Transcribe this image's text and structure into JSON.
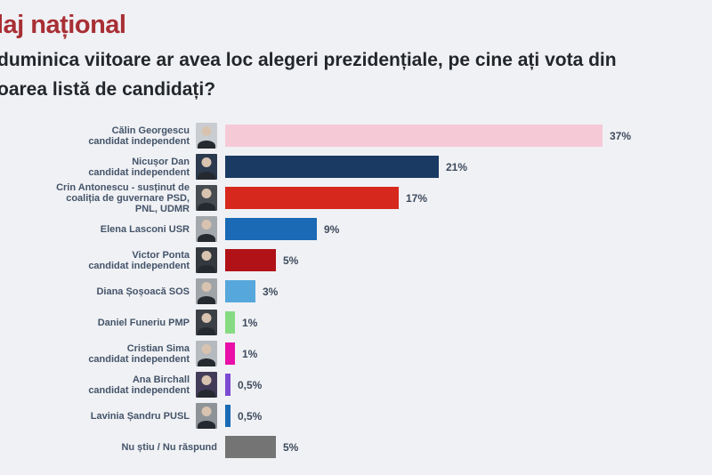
{
  "header": {
    "title": "laj național",
    "question_line1": "duminica viitoare ar avea loc alegeri prezidențiale, pe cine ați vota din",
    "question_line2": "oarea listă de candidați?"
  },
  "colors": {
    "background": "#F0F1F4",
    "title": "#A82F35",
    "question_text": "#23272B",
    "category_label": "#44546A",
    "value_label": "#3E4B5E"
  },
  "chart_data": {
    "type": "bar",
    "orientation": "horizontal",
    "title": "laj național",
    "question": "duminica viitoare ar avea loc alegeri prezidențiale, pe cine ați vota din oarea listă de candidați?",
    "unit": "%",
    "xlim": [
      0,
      40
    ],
    "grid": false,
    "legend": "none",
    "categories": [
      "Călin Georgescu — candidat independent",
      "Nicușor Dan — candidat independent",
      "Crin Antonescu - susținut de coaliția de guvernare PSD, PNL, UDMR",
      "Elena Lasconi USR",
      "Victor Ponta — candidat independent",
      "Diana Șoșoacă SOS",
      "Daniel Funeriu PMP",
      "Cristian Sima — candidat independent",
      "Ana Birchall — candidat independent",
      "Lavinia Șandru PUSL",
      "Nu știu / Nu răspund"
    ],
    "values": [
      37,
      21,
      17,
      9,
      5,
      3,
      1,
      1,
      0.5,
      0.5,
      5
    ],
    "value_labels": [
      "37%",
      "21%",
      "17%",
      "9%",
      "5%",
      "3%",
      "1%",
      "1%",
      "0,5%",
      "0,5%",
      "5%"
    ],
    "bar_colors": [
      "#F6C9D6",
      "#1A3A63",
      "#D7281D",
      "#1A6AB5",
      "#B01217",
      "#56A7DC",
      "#86DB82",
      "#E90FA8",
      "#7B4AD2",
      "#1A6AB5",
      "#747474"
    ],
    "rows": [
      {
        "label_lines": [
          "Călin Georgescu",
          "candidat independent"
        ],
        "photo_bg": "#C9CDD1"
      },
      {
        "label_lines": [
          "Nicușor Dan",
          "candidat independent"
        ],
        "photo_bg": "#2B3A4E"
      },
      {
        "label_lines": [
          "Crin Antonescu - susținut de",
          "coaliția de guvernare PSD,",
          "PNL, UDMR"
        ],
        "photo_bg": "#474C52"
      },
      {
        "label_lines": [
          "Elena Lasconi USR"
        ],
        "photo_bg": "#A3A8AD"
      },
      {
        "label_lines": [
          "Victor Ponta",
          "candidat independent"
        ],
        "photo_bg": "#33393F"
      },
      {
        "label_lines": [
          "Diana Șoșoacă SOS"
        ],
        "photo_bg": "#9FA4A9"
      },
      {
        "label_lines": [
          "Daniel Funeriu PMP"
        ],
        "photo_bg": "#3A4046"
      },
      {
        "label_lines": [
          "Cristian Sima",
          "candidat independent"
        ],
        "photo_bg": "#B5BABE"
      },
      {
        "label_lines": [
          "Ana Birchall",
          "candidat independent"
        ],
        "photo_bg": "#433C59"
      },
      {
        "label_lines": [
          "Lavinia Șandru PUSL"
        ],
        "photo_bg": "#8E9398"
      },
      {
        "label_lines": [
          "Nu știu / Nu răspund"
        ],
        "photo_bg": null
      }
    ]
  }
}
